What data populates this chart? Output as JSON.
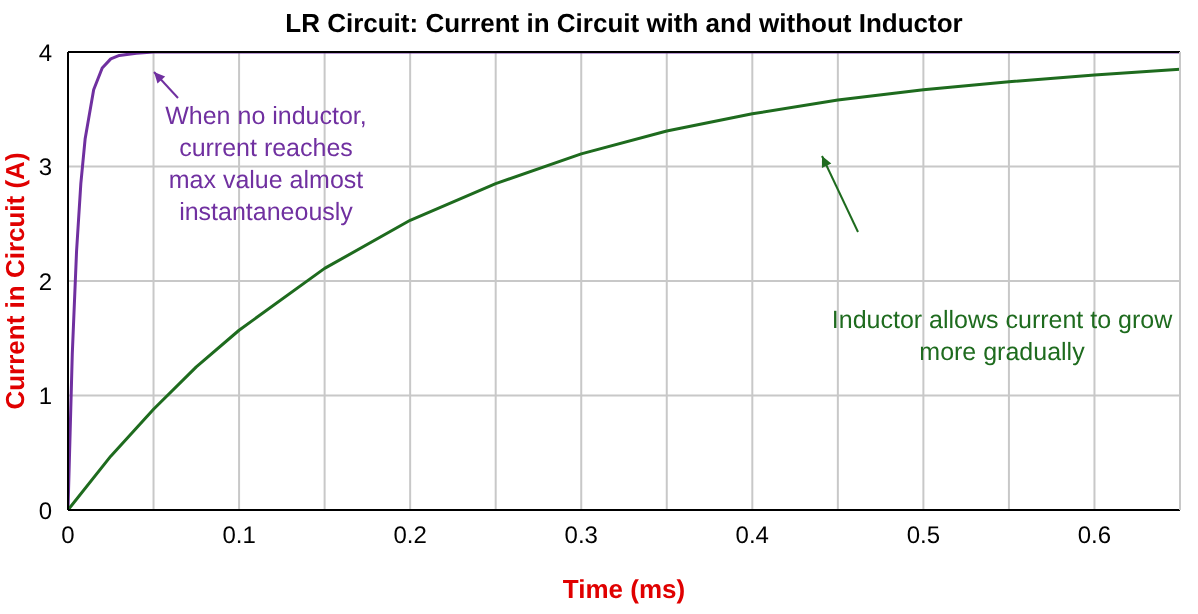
{
  "chart_data": {
    "type": "line",
    "title": "LR Circuit:  Current in Circuit with and without Inductor",
    "xlabel": "Time (ms)",
    "ylabel": "Current in Circuit (A)",
    "xlim": [
      0,
      0.65
    ],
    "xticks": [
      0,
      {
        "value": 0.05,
        "label": null
      },
      0.1,
      {
        "value": 0.15,
        "label": null
      },
      0.2,
      {
        "value": 0.25,
        "label": null
      },
      0.3,
      {
        "value": 0.35,
        "label": null
      },
      0.4,
      {
        "value": 0.45,
        "label": null
      },
      0.5,
      {
        "value": 0.55,
        "label": null
      },
      0.6
    ],
    "ylim": [
      0,
      4
    ],
    "yticks": [
      0,
      1,
      2,
      3,
      4
    ],
    "grid": true,
    "marker": "none",
    "line_style": "solid",
    "series": [
      {
        "color": "#7030a0",
        "x": [
          0,
          0.0025,
          0.005,
          0.0075,
          0.01,
          0.015,
          0.02,
          0.025,
          0.03,
          0.04,
          0.05,
          0.65
        ],
        "values": [
          0,
          1.36,
          2.26,
          2.85,
          3.24,
          3.67,
          3.86,
          3.94,
          3.97,
          3.99,
          4,
          4
        ]
      },
      {
        "color": "#1e6b1e",
        "x": [
          0,
          0.025,
          0.05,
          0.075,
          0.1,
          0.15,
          0.2,
          0.25,
          0.3,
          0.35,
          0.4,
          0.45,
          0.5,
          0.55,
          0.6,
          0.65
        ],
        "values": [
          0,
          0.47,
          0.88,
          1.25,
          1.57,
          2.11,
          2.53,
          2.85,
          3.11,
          3.31,
          3.46,
          3.58,
          3.67,
          3.74,
          3.8,
          3.85
        ]
      }
    ],
    "annotations": [
      "When no inductor, current reaches max value almost instantaneously",
      "Inductor allows current to grow more gradually"
    ]
  }
}
